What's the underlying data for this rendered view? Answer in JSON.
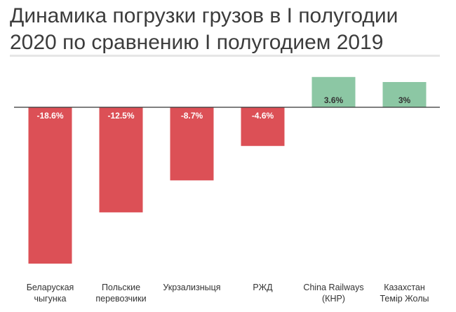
{
  "title": "Динамика погрузки грузов в I полугодии 2020 по сравнению I полугодием 2019",
  "colors": {
    "negative": "#dc5056",
    "positive": "#8cc7a4",
    "axis": "#333333"
  },
  "chart_data": {
    "type": "bar",
    "title": "Динамика погрузки грузов в I полугодии 2020 по сравнению I полугодием 2019",
    "categories": [
      [
        "Беларуская",
        "чыгунка"
      ],
      [
        "Польские",
        "перевозчики"
      ],
      [
        "Укрзализныця"
      ],
      [
        "РЖД"
      ],
      [
        "China Railways",
        "(КНР)"
      ],
      [
        "Казахстан",
        "Темір Жолы"
      ]
    ],
    "values": [
      -18.6,
      -12.5,
      -8.7,
      -4.6,
      3.6,
      3
    ],
    "labels": [
      "-18.6%",
      "-12.5%",
      "-8.7%",
      "-4.6%",
      "3.6%",
      "3%"
    ],
    "ylim": [
      -18.6,
      3.6
    ],
    "grid": false,
    "legend": "none"
  }
}
